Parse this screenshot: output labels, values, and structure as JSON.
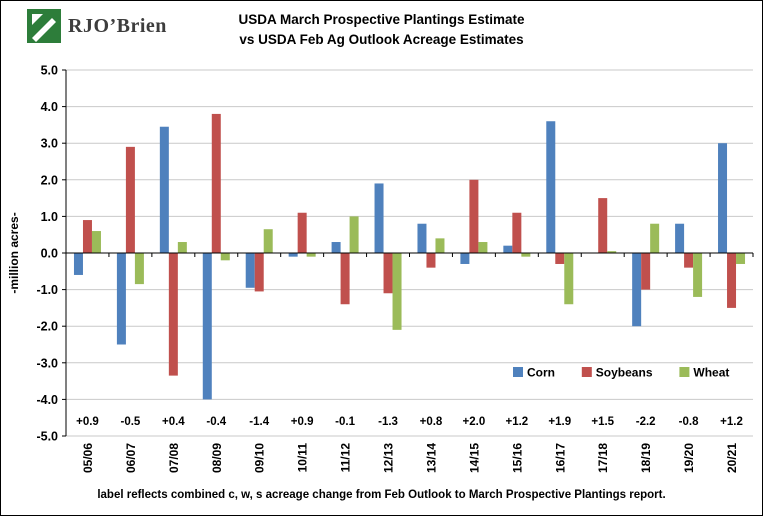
{
  "logo": {
    "text": "RJO’Brien"
  },
  "title": {
    "line1": "USDA March Prospective Plantings Estimate",
    "line2": "vs USDA Feb Ag Outlook Acreage Estimates"
  },
  "chart_data": {
    "type": "bar",
    "title": "USDA March Prospective Plantings Estimate vs USDA Feb Ag Outlook Acreage Estimates",
    "ylabel": "-million acres-",
    "xlabel": "",
    "ylim": [
      -5.0,
      5.0
    ],
    "ytick_step": 1.0,
    "grid": true,
    "legend_position": "inside-right",
    "yticks": [
      "5.0",
      "4.0",
      "3.0",
      "2.0",
      "1.0",
      "0.0",
      "-1.0",
      "-2.0",
      "-3.0",
      "-4.0",
      "-5.0"
    ],
    "categories": [
      "05/06",
      "06/07",
      "07/08",
      "08/09",
      "09/10",
      "10/11",
      "11/12",
      "12/13",
      "13/14",
      "14/15",
      "15/16",
      "16/17",
      "17/18",
      "18/19",
      "19/20",
      "20/21"
    ],
    "series": [
      {
        "name": "Corn",
        "color": "#4F81BD",
        "values": [
          -0.6,
          -2.5,
          3.45,
          -4.0,
          -0.95,
          -0.1,
          0.3,
          1.9,
          0.8,
          -0.3,
          0.2,
          3.6,
          0.0,
          -2.0,
          0.8,
          3.0
        ]
      },
      {
        "name": "Soybeans",
        "color": "#C0504D",
        "values": [
          0.9,
          2.9,
          -3.35,
          3.8,
          -1.05,
          1.1,
          -1.4,
          -1.1,
          -0.4,
          2.0,
          1.1,
          -0.3,
          1.5,
          -1.0,
          -0.4,
          -1.5
        ]
      },
      {
        "name": "Wheat",
        "color": "#9BBB59",
        "values": [
          0.6,
          -0.85,
          0.3,
          -0.2,
          0.65,
          -0.1,
          1.0,
          -2.1,
          0.4,
          0.3,
          -0.1,
          -1.4,
          0.05,
          0.8,
          -1.2,
          -0.3
        ]
      }
    ],
    "sum_labels": [
      "+0.9",
      "-0.5",
      "+0.4",
      "-0.4",
      "-1.4",
      "+0.9",
      "-0.1",
      "-1.3",
      "+0.8",
      "+2.0",
      "+1.2",
      "+1.9",
      "+1.5",
      "-2.2",
      "-0.8",
      "+1.2"
    ],
    "gridline_color": "#c9c9c9",
    "axis_color": "#000000"
  },
  "footer": {
    "note": "label reflects combined c, w, s acreage change from Feb Outlook to March Prospective Plantings report."
  }
}
